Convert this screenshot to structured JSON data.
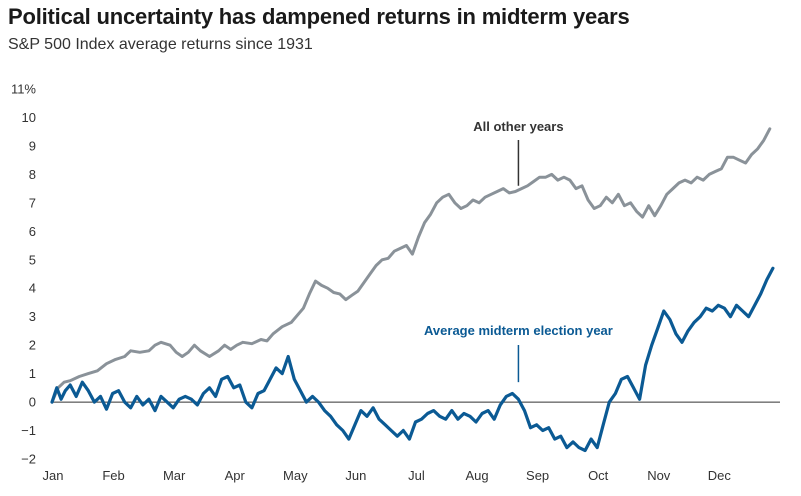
{
  "chart_data": {
    "type": "line",
    "title": "Political uncertainty has dampened returns in midterm years",
    "subtitle": "S&P 500 Index average returns since 1931",
    "xlabel": "",
    "ylabel": "",
    "x_ticks": [
      "Jan",
      "Feb",
      "Mar",
      "Apr",
      "May",
      "Jun",
      "Jul",
      "Aug",
      "Sep",
      "Oct",
      "Nov",
      "Dec"
    ],
    "y_ticks": [
      "11%",
      "10",
      "9",
      "8",
      "7",
      "6",
      "5",
      "4",
      "3",
      "2",
      "1",
      "0",
      "−1",
      "−2"
    ],
    "ylim": [
      -2,
      11
    ],
    "xlim": [
      0,
      12
    ],
    "grid": false,
    "zero_line": true,
    "series": [
      {
        "name": "All other years",
        "color": "#8a9299",
        "points": [
          [
            0.0,
            0.0
          ],
          [
            0.1,
            0.5
          ],
          [
            0.2,
            0.7
          ],
          [
            0.3,
            0.75
          ],
          [
            0.45,
            0.9
          ],
          [
            0.6,
            1.0
          ],
          [
            0.75,
            1.1
          ],
          [
            0.9,
            1.35
          ],
          [
            1.05,
            1.5
          ],
          [
            1.2,
            1.6
          ],
          [
            1.3,
            1.8
          ],
          [
            1.45,
            1.75
          ],
          [
            1.6,
            1.8
          ],
          [
            1.7,
            2.0
          ],
          [
            1.8,
            2.1
          ],
          [
            1.95,
            2.0
          ],
          [
            2.05,
            1.75
          ],
          [
            2.15,
            1.6
          ],
          [
            2.25,
            1.75
          ],
          [
            2.35,
            2.0
          ],
          [
            2.45,
            1.8
          ],
          [
            2.6,
            1.6
          ],
          [
            2.75,
            1.8
          ],
          [
            2.85,
            2.0
          ],
          [
            2.95,
            1.85
          ],
          [
            3.05,
            2.0
          ],
          [
            3.15,
            2.1
          ],
          [
            3.3,
            2.05
          ],
          [
            3.45,
            2.2
          ],
          [
            3.55,
            2.15
          ],
          [
            3.65,
            2.4
          ],
          [
            3.8,
            2.65
          ],
          [
            3.95,
            2.8
          ],
          [
            4.05,
            3.05
          ],
          [
            4.15,
            3.3
          ],
          [
            4.25,
            3.8
          ],
          [
            4.35,
            4.25
          ],
          [
            4.45,
            4.1
          ],
          [
            4.55,
            4.0
          ],
          [
            4.65,
            3.85
          ],
          [
            4.75,
            3.8
          ],
          [
            4.85,
            3.6
          ],
          [
            4.95,
            3.75
          ],
          [
            5.05,
            3.9
          ],
          [
            5.15,
            4.2
          ],
          [
            5.25,
            4.5
          ],
          [
            5.35,
            4.8
          ],
          [
            5.45,
            5.0
          ],
          [
            5.55,
            5.05
          ],
          [
            5.65,
            5.3
          ],
          [
            5.75,
            5.4
          ],
          [
            5.85,
            5.5
          ],
          [
            5.95,
            5.2
          ],
          [
            6.05,
            5.8
          ],
          [
            6.15,
            6.3
          ],
          [
            6.25,
            6.6
          ],
          [
            6.35,
            7.0
          ],
          [
            6.45,
            7.2
          ],
          [
            6.55,
            7.3
          ],
          [
            6.65,
            7.0
          ],
          [
            6.75,
            6.8
          ],
          [
            6.85,
            6.9
          ],
          [
            6.95,
            7.1
          ],
          [
            7.05,
            7.0
          ],
          [
            7.15,
            7.2
          ],
          [
            7.25,
            7.3
          ],
          [
            7.35,
            7.4
          ],
          [
            7.45,
            7.5
          ],
          [
            7.55,
            7.35
          ],
          [
            7.65,
            7.4
          ],
          [
            7.75,
            7.5
          ],
          [
            7.85,
            7.6
          ],
          [
            7.95,
            7.75
          ],
          [
            8.05,
            7.9
          ],
          [
            8.15,
            7.9
          ],
          [
            8.25,
            8.0
          ],
          [
            8.35,
            7.8
          ],
          [
            8.45,
            7.9
          ],
          [
            8.55,
            7.8
          ],
          [
            8.65,
            7.5
          ],
          [
            8.75,
            7.6
          ],
          [
            8.85,
            7.1
          ],
          [
            8.95,
            6.8
          ],
          [
            9.05,
            6.9
          ],
          [
            9.15,
            7.2
          ],
          [
            9.25,
            7.0
          ],
          [
            9.35,
            7.3
          ],
          [
            9.45,
            6.9
          ],
          [
            9.55,
            7.0
          ],
          [
            9.65,
            6.7
          ],
          [
            9.75,
            6.5
          ],
          [
            9.85,
            6.9
          ],
          [
            9.95,
            6.55
          ],
          [
            10.05,
            6.9
          ],
          [
            10.15,
            7.3
          ],
          [
            10.25,
            7.5
          ],
          [
            10.35,
            7.7
          ],
          [
            10.45,
            7.8
          ],
          [
            10.55,
            7.7
          ],
          [
            10.65,
            7.9
          ],
          [
            10.75,
            7.8
          ],
          [
            10.85,
            8.0
          ],
          [
            10.95,
            8.1
          ],
          [
            11.05,
            8.2
          ],
          [
            11.15,
            8.6
          ],
          [
            11.25,
            8.6
          ],
          [
            11.35,
            8.5
          ],
          [
            11.45,
            8.4
          ],
          [
            11.55,
            8.7
          ],
          [
            11.65,
            8.9
          ],
          [
            11.75,
            9.2
          ],
          [
            11.85,
            9.6
          ]
        ]
      },
      {
        "name": "Average midterm election year",
        "color": "#0b5a94",
        "points": [
          [
            0.0,
            0.0
          ],
          [
            0.08,
            0.5
          ],
          [
            0.15,
            0.1
          ],
          [
            0.22,
            0.4
          ],
          [
            0.3,
            0.6
          ],
          [
            0.4,
            0.2
          ],
          [
            0.5,
            0.7
          ],
          [
            0.6,
            0.4
          ],
          [
            0.7,
            0.0
          ],
          [
            0.8,
            0.2
          ],
          [
            0.9,
            -0.25
          ],
          [
            1.0,
            0.3
          ],
          [
            1.1,
            0.4
          ],
          [
            1.2,
            0.0
          ],
          [
            1.3,
            -0.2
          ],
          [
            1.4,
            0.2
          ],
          [
            1.5,
            -0.1
          ],
          [
            1.6,
            0.1
          ],
          [
            1.7,
            -0.3
          ],
          [
            1.8,
            0.2
          ],
          [
            1.9,
            0.0
          ],
          [
            2.0,
            -0.2
          ],
          [
            2.1,
            0.1
          ],
          [
            2.2,
            0.2
          ],
          [
            2.3,
            0.1
          ],
          [
            2.4,
            -0.1
          ],
          [
            2.5,
            0.3
          ],
          [
            2.6,
            0.5
          ],
          [
            2.7,
            0.2
          ],
          [
            2.8,
            0.8
          ],
          [
            2.9,
            0.9
          ],
          [
            3.0,
            0.5
          ],
          [
            3.1,
            0.6
          ],
          [
            3.2,
            0.0
          ],
          [
            3.3,
            -0.2
          ],
          [
            3.4,
            0.3
          ],
          [
            3.5,
            0.4
          ],
          [
            3.6,
            0.8
          ],
          [
            3.7,
            1.2
          ],
          [
            3.8,
            1.0
          ],
          [
            3.9,
            1.6
          ],
          [
            4.0,
            0.8
          ],
          [
            4.1,
            0.4
          ],
          [
            4.2,
            0.0
          ],
          [
            4.3,
            0.2
          ],
          [
            4.4,
            0.0
          ],
          [
            4.5,
            -0.3
          ],
          [
            4.6,
            -0.5
          ],
          [
            4.7,
            -0.8
          ],
          [
            4.8,
            -1.0
          ],
          [
            4.9,
            -1.3
          ],
          [
            5.0,
            -0.8
          ],
          [
            5.1,
            -0.3
          ],
          [
            5.2,
            -0.5
          ],
          [
            5.3,
            -0.2
          ],
          [
            5.4,
            -0.6
          ],
          [
            5.5,
            -0.8
          ],
          [
            5.6,
            -1.0
          ],
          [
            5.7,
            -1.2
          ],
          [
            5.8,
            -1.0
          ],
          [
            5.9,
            -1.3
          ],
          [
            6.0,
            -0.7
          ],
          [
            6.1,
            -0.6
          ],
          [
            6.2,
            -0.4
          ],
          [
            6.3,
            -0.3
          ],
          [
            6.4,
            -0.5
          ],
          [
            6.5,
            -0.6
          ],
          [
            6.6,
            -0.3
          ],
          [
            6.7,
            -0.6
          ],
          [
            6.8,
            -0.4
          ],
          [
            6.9,
            -0.5
          ],
          [
            7.0,
            -0.7
          ],
          [
            7.1,
            -0.4
          ],
          [
            7.2,
            -0.3
          ],
          [
            7.3,
            -0.6
          ],
          [
            7.4,
            -0.1
          ],
          [
            7.5,
            0.2
          ],
          [
            7.6,
            0.3
          ],
          [
            7.7,
            0.1
          ],
          [
            7.8,
            -0.3
          ],
          [
            7.9,
            -0.9
          ],
          [
            8.0,
            -0.8
          ],
          [
            8.1,
            -1.0
          ],
          [
            8.2,
            -0.9
          ],
          [
            8.3,
            -1.3
          ],
          [
            8.4,
            -1.2
          ],
          [
            8.5,
            -1.6
          ],
          [
            8.6,
            -1.4
          ],
          [
            8.7,
            -1.6
          ],
          [
            8.8,
            -1.7
          ],
          [
            8.9,
            -1.3
          ],
          [
            9.0,
            -1.6
          ],
          [
            9.1,
            -0.8
          ],
          [
            9.2,
            0.0
          ],
          [
            9.3,
            0.3
          ],
          [
            9.4,
            0.8
          ],
          [
            9.5,
            0.9
          ],
          [
            9.6,
            0.5
          ],
          [
            9.7,
            0.1
          ],
          [
            9.8,
            1.3
          ],
          [
            9.9,
            2.0
          ],
          [
            10.0,
            2.6
          ],
          [
            10.1,
            3.2
          ],
          [
            10.2,
            2.9
          ],
          [
            10.3,
            2.4
          ],
          [
            10.4,
            2.1
          ],
          [
            10.5,
            2.5
          ],
          [
            10.6,
            2.8
          ],
          [
            10.7,
            3.0
          ],
          [
            10.8,
            3.3
          ],
          [
            10.9,
            3.2
          ],
          [
            11.0,
            3.4
          ],
          [
            11.1,
            3.3
          ],
          [
            11.2,
            3.0
          ],
          [
            11.3,
            3.4
          ],
          [
            11.4,
            3.2
          ],
          [
            11.5,
            3.0
          ],
          [
            11.6,
            3.4
          ],
          [
            11.7,
            3.8
          ],
          [
            11.8,
            4.3
          ],
          [
            11.9,
            4.7
          ]
        ]
      }
    ],
    "annotations": [
      {
        "text": "All other years",
        "series": 0,
        "x": 7.7,
        "y": 7.6
      },
      {
        "text": "Average midterm election year",
        "series": 1,
        "x": 7.7,
        "y": 0.7
      }
    ]
  }
}
